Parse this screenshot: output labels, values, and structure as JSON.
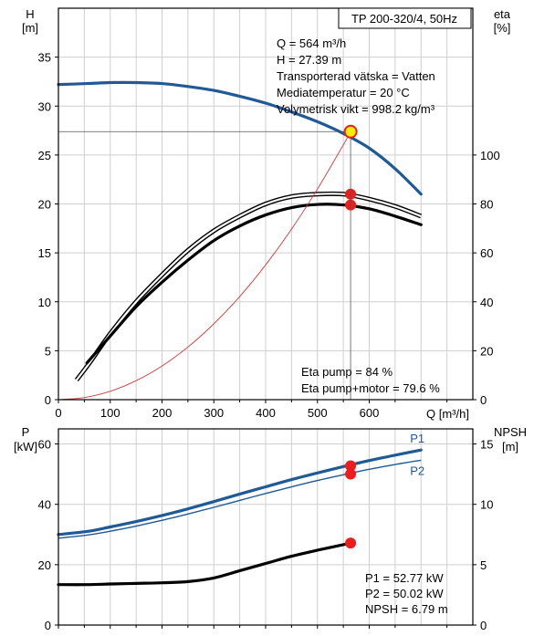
{
  "chart_data": [
    {
      "type": "line",
      "name": "pump-curve-chart",
      "title": "TP 200-320/4, 50Hz",
      "xlabel": "Q [m³/h]",
      "ylabel_left": [
        "H",
        "[m]"
      ],
      "ylabel_right": [
        "eta",
        "[%]"
      ],
      "xlim": [
        0,
        800
      ],
      "ylim_left": [
        0,
        40
      ],
      "ylim_right": [
        0,
        160
      ],
      "x_ticks": [
        0,
        100,
        200,
        300,
        400,
        500,
        600
      ],
      "y_left_ticks": [
        0,
        5,
        10,
        15,
        20,
        25,
        30,
        35
      ],
      "y_right_ticks": [
        0,
        20,
        40,
        60,
        80,
        100
      ],
      "grid": true,
      "series": [
        {
          "name": "H",
          "axis": "left",
          "color": "#1f5a96",
          "style": "thick",
          "x": [
            0,
            55,
            100,
            150,
            200,
            250,
            300,
            350,
            400,
            450,
            500,
            550,
            600,
            650,
            700
          ],
          "y": [
            32.2,
            32.3,
            32.4,
            32.4,
            32.3,
            32.0,
            31.6,
            31.0,
            30.3,
            29.4,
            28.4,
            27.2,
            25.7,
            23.6,
            21.0
          ],
          "dashed_segment_until_x": 55
        },
        {
          "name": "Eta pump",
          "axis": "right",
          "color": "#000000",
          "style": "double",
          "x": [
            35,
            60,
            100,
            150,
            200,
            250,
            300,
            350,
            400,
            450,
            500,
            550,
            600,
            650,
            700
          ],
          "y": [
            8,
            15,
            27,
            40,
            51,
            61,
            69,
            75,
            80,
            83,
            84,
            84,
            82,
            79,
            75
          ]
        },
        {
          "name": "Eta pump+motor",
          "axis": "right",
          "color": "#000000",
          "style": "thick",
          "x": [
            55,
            100,
            150,
            200,
            250,
            300,
            350,
            400,
            450,
            500,
            550,
            600,
            650,
            700
          ],
          "y": [
            15,
            26,
            38,
            48,
            57,
            65,
            71,
            75.5,
            78.5,
            79.8,
            79.6,
            78,
            75,
            71.5
          ]
        },
        {
          "name": "System curve",
          "axis": "left",
          "color": "#d23c3c",
          "style": "thin",
          "x": [
            0,
            50,
            100,
            150,
            200,
            250,
            300,
            350,
            400,
            450,
            500,
            550,
            564
          ],
          "y": [
            0,
            0.22,
            0.86,
            1.94,
            3.44,
            5.38,
            7.75,
            10.54,
            13.77,
            17.43,
            21.52,
            26.04,
            27.39
          ]
        }
      ],
      "operating_point": {
        "x": 564,
        "y": 27.39
      },
      "markers": [
        {
          "axis": "right",
          "x": 564,
          "y": 84
        },
        {
          "axis": "right",
          "x": 564,
          "y": 79.6
        }
      ],
      "annotations": [
        "Q = 564 m³/h",
        "H = 27.39 m",
        "Transporterad vätska = Vatten",
        "Mediatemperatur = 20 °C",
        "Volymetrisk vikt = 998.2 kg/m³"
      ],
      "bottom_annotations": [
        "Eta pump = 84 %",
        "Eta pump+motor = 79.6 %"
      ]
    },
    {
      "type": "line",
      "name": "power-npsh-chart",
      "ylabel_left": [
        "P",
        "[kW]"
      ],
      "ylabel_right": [
        "NPSH",
        "[m]"
      ],
      "xlim": [
        0,
        800
      ],
      "ylim_left": [
        0,
        65
      ],
      "ylim_right": [
        0,
        16.25
      ],
      "x_ticks": [
        0,
        100,
        200,
        300,
        400,
        500,
        600
      ],
      "y_left_ticks": [
        0,
        20,
        40,
        60
      ],
      "y_right_ticks": [
        0,
        5,
        10,
        15
      ],
      "grid": true,
      "series": [
        {
          "name": "P1",
          "axis": "left",
          "color": "#1f5a96",
          "style": "thick",
          "x": [
            0,
            55,
            100,
            150,
            200,
            250,
            300,
            350,
            400,
            450,
            500,
            550,
            600,
            650,
            700
          ],
          "y": [
            30,
            31,
            32.5,
            34.3,
            36.3,
            38.5,
            40.9,
            43.4,
            45.8,
            48.2,
            50.4,
            52.5,
            54.5,
            56.3,
            58
          ]
        },
        {
          "name": "P2",
          "axis": "left",
          "color": "#1f5a96",
          "style": "thin",
          "x": [
            0,
            55,
            100,
            150,
            200,
            250,
            300,
            350,
            400,
            450,
            500,
            550,
            600,
            650,
            700
          ],
          "y": [
            28.8,
            29.8,
            31.1,
            32.8,
            34.7,
            36.8,
            39.0,
            41.3,
            43.6,
            45.8,
            47.9,
            49.8,
            51.6,
            53.2,
            54.6
          ]
        },
        {
          "name": "NPSH",
          "axis": "right",
          "color": "#000000",
          "style": "thick",
          "x": [
            0,
            55,
            100,
            150,
            200,
            250,
            300,
            350,
            400,
            450,
            500,
            564
          ],
          "y": [
            3.35,
            3.35,
            3.4,
            3.45,
            3.5,
            3.6,
            3.9,
            4.5,
            5.1,
            5.7,
            6.2,
            6.79
          ]
        }
      ],
      "markers": [
        {
          "axis": "left",
          "x": 564,
          "y": 52.77
        },
        {
          "axis": "left",
          "x": 564,
          "y": 50.02
        },
        {
          "axis": "right",
          "x": 564,
          "y": 6.79
        }
      ],
      "annotations": [
        "P1 = 52.77 kW",
        "P2 = 50.02 kW",
        "NPSH = 6.79 m"
      ]
    }
  ]
}
